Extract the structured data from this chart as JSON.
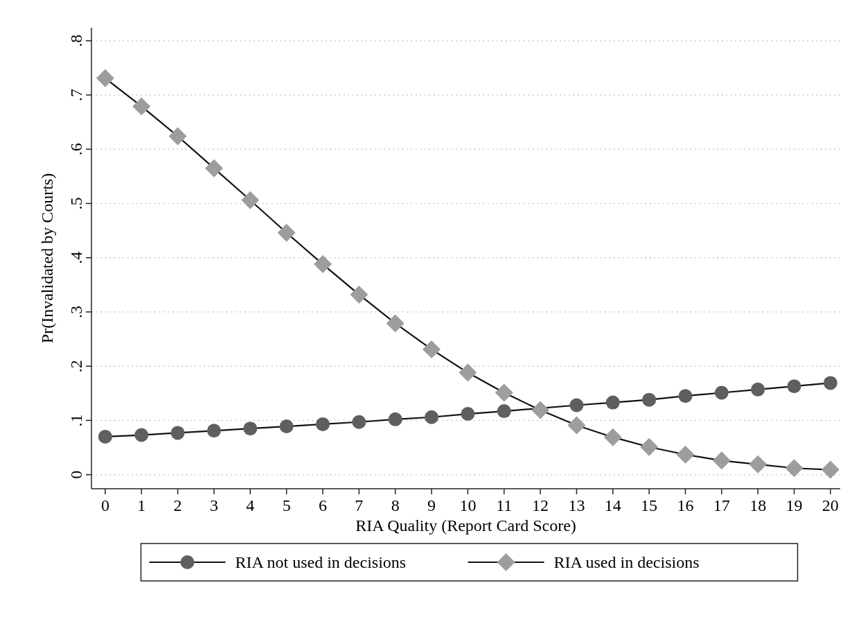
{
  "chart_data": {
    "type": "line",
    "xlabel": "RIA Quality (Report Card Score)",
    "ylabel": "Pr(Invalidated by Courts)",
    "x": [
      0,
      1,
      2,
      3,
      4,
      5,
      6,
      7,
      8,
      9,
      10,
      11,
      12,
      13,
      14,
      15,
      16,
      17,
      18,
      19,
      20
    ],
    "series": [
      {
        "name": "RIA not used in decisions",
        "color": "#5f5f5f",
        "marker": "circle",
        "values": [
          0.07,
          0.073,
          0.077,
          0.081,
          0.085,
          0.089,
          0.093,
          0.097,
          0.102,
          0.106,
          0.112,
          0.117,
          null,
          0.128,
          0.133,
          0.138,
          0.145,
          0.151,
          0.157,
          0.163,
          0.169
        ]
      },
      {
        "name": "RIA used in decisions",
        "color": "#9d9d9d",
        "marker": "diamond",
        "values": [
          0.731,
          0.679,
          0.624,
          0.565,
          0.506,
          0.446,
          0.388,
          0.332,
          0.279,
          0.231,
          0.188,
          0.151,
          0.119,
          0.091,
          0.069,
          0.051,
          0.037,
          0.026,
          0.019,
          0.012,
          0.009
        ]
      }
    ],
    "xlim": [
      -0.38,
      20.27
    ],
    "xticks": [
      0,
      1,
      2,
      3,
      4,
      5,
      6,
      7,
      8,
      9,
      10,
      11,
      12,
      13,
      14,
      15,
      16,
      17,
      18,
      19,
      20
    ],
    "ylim": [
      -0.026,
      0.824
    ],
    "yticks": [
      {
        "value": 0,
        "label": "0"
      },
      {
        "value": 0.1,
        "label": ".1"
      },
      {
        "value": 0.2,
        "label": ".2"
      },
      {
        "value": 0.3,
        "label": ".3"
      },
      {
        "value": 0.4,
        "label": ".4"
      },
      {
        "value": 0.5,
        "label": ".5"
      },
      {
        "value": 0.6,
        "label": ".6"
      },
      {
        "value": 0.7,
        "label": ".7"
      },
      {
        "value": 0.8,
        "label": ".8"
      }
    ],
    "grid": "y",
    "legend": "bottom",
    "line_style": "solid"
  }
}
